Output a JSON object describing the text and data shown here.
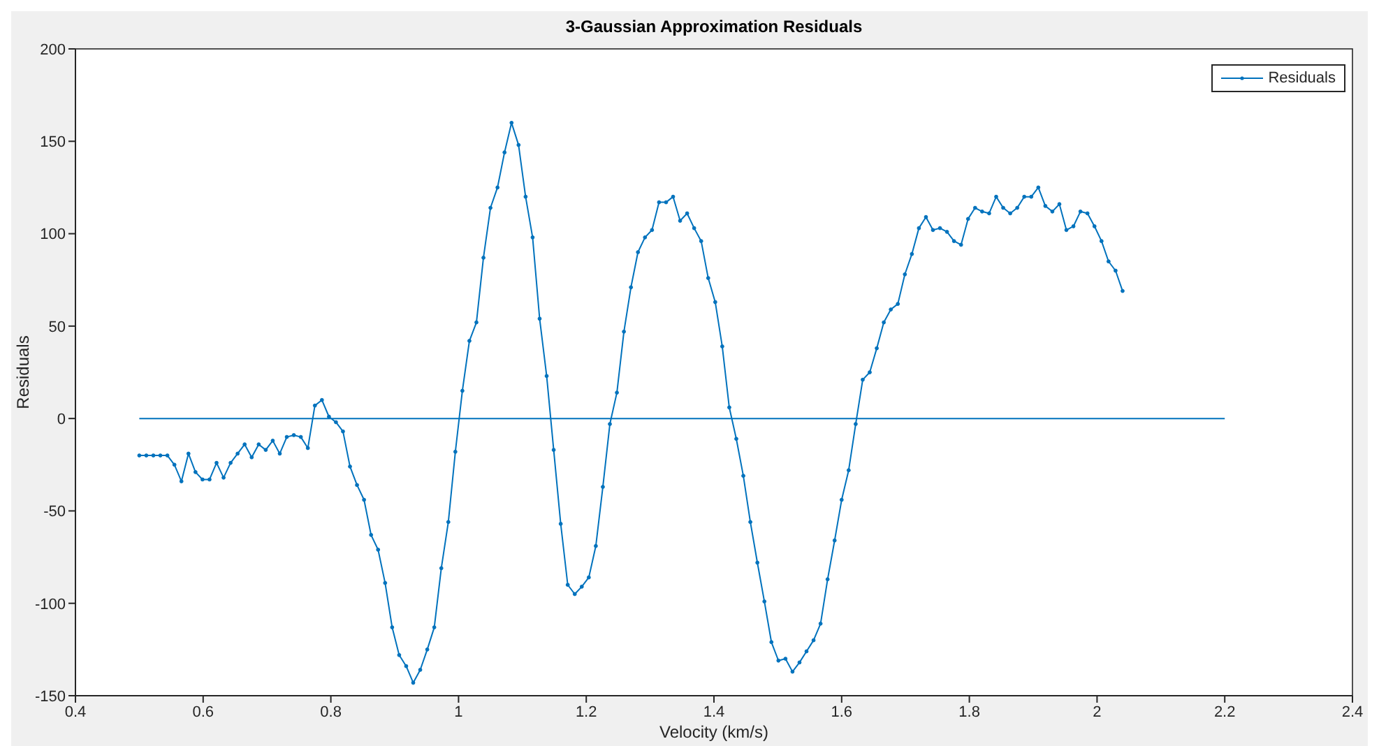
{
  "chart_data": {
    "type": "line",
    "title": "3-Gaussian Approximation Residuals",
    "xlabel": "Velocity (km/s)",
    "ylabel": "Residuals",
    "xlim": [
      0.4,
      2.4
    ],
    "xticks": [
      0.4,
      0.6,
      0.8,
      1,
      1.2,
      1.4,
      1.6,
      1.8,
      2,
      2.2,
      2.4
    ],
    "ylim": [
      -150,
      200
    ],
    "yticks": [
      -150,
      -100,
      -50,
      0,
      50,
      100,
      150,
      200
    ],
    "legend": "top right",
    "marker": "circle",
    "line_style": "solid",
    "series": [
      {
        "name": "Residuals",
        "color": "#0072bd",
        "x": [
          0.5,
          0.511,
          0.522,
          0.533,
          0.544,
          0.555,
          0.566,
          0.577,
          0.588,
          0.599,
          0.61,
          0.621,
          0.632,
          0.643,
          0.654,
          0.665,
          0.676,
          0.687,
          0.698,
          0.709,
          0.72,
          0.731,
          0.742,
          0.753,
          0.764,
          0.775,
          0.786,
          0.797,
          0.808,
          0.819,
          0.83,
          0.841,
          0.852,
          0.863,
          0.874,
          0.885,
          0.896,
          0.907,
          0.918,
          0.929,
          0.94,
          0.951,
          0.962,
          0.973,
          0.984,
          0.995,
          1.006,
          1.017,
          1.028,
          1.039,
          1.05,
          1.061,
          1.072,
          1.083,
          1.094,
          1.105,
          1.116,
          1.127,
          1.138,
          1.149,
          1.16,
          1.171,
          1.182,
          1.193,
          1.204,
          1.215,
          1.226,
          1.237,
          1.248,
          1.259,
          1.27,
          1.281,
          1.292,
          1.303,
          1.314,
          1.325,
          1.336,
          1.347,
          1.358,
          1.369,
          1.38,
          1.391,
          1.402,
          1.413,
          1.424,
          1.435,
          1.446,
          1.457,
          1.468,
          1.479,
          1.49,
          1.501,
          1.512,
          1.523,
          1.534,
          1.545,
          1.556,
          1.567,
          1.578,
          1.589,
          1.6,
          1.611,
          1.622,
          1.633,
          1.644,
          1.655,
          1.666,
          1.677,
          1.688,
          1.699,
          1.71,
          1.721,
          1.732,
          1.743,
          1.754,
          1.765,
          1.776,
          1.787,
          1.798,
          1.809,
          1.82,
          1.831,
          1.842,
          1.853,
          1.864,
          1.875,
          1.886,
          1.897,
          1.908,
          1.919,
          1.93,
          1.941,
          1.952,
          1.963,
          1.974,
          1.985,
          1.996,
          2.007,
          2.018,
          2.029,
          2.04
        ],
        "values": [
          -20,
          -20,
          -20,
          -20,
          -20,
          -25,
          -34,
          -19,
          -29,
          -33,
          -33,
          -24,
          -32,
          -24,
          -19,
          -14,
          -21,
          -14,
          -17,
          -12,
          -19,
          -10,
          -9,
          -10,
          -16,
          7,
          10,
          1,
          -2,
          -7,
          -26,
          -36,
          -44,
          -63,
          -71,
          -89,
          -113,
          -128,
          -134,
          -143,
          -136,
          -125,
          -113,
          -81,
          -56,
          -18,
          15,
          42,
          52,
          87,
          114,
          125,
          144,
          160,
          148,
          120,
          98,
          54,
          23,
          -17,
          -57,
          -90,
          -95,
          -91,
          -86,
          -69,
          -37,
          -3,
          14,
          47,
          71,
          90,
          98,
          102,
          117,
          117,
          120,
          107,
          111,
          103,
          96,
          76,
          63,
          39,
          6,
          -11,
          -31,
          -56,
          -78,
          -99,
          -121,
          -131,
          -130,
          -137,
          -132,
          -126,
          -120,
          -111,
          -87,
          -66,
          -44,
          -28,
          -3,
          21,
          25,
          38,
          52,
          59,
          62,
          78,
          89,
          103,
          109,
          102,
          103,
          101,
          96,
          94,
          108,
          114,
          112,
          111,
          120,
          114,
          111,
          114,
          120,
          120,
          125,
          115,
          112,
          116,
          102,
          104,
          112,
          111,
          104,
          96,
          85,
          80,
          69
        ]
      },
      {
        "color": "#0072bd",
        "marker": "none",
        "x": [
          0.5,
          2.2
        ],
        "values": [
          0,
          0
        ]
      }
    ]
  }
}
